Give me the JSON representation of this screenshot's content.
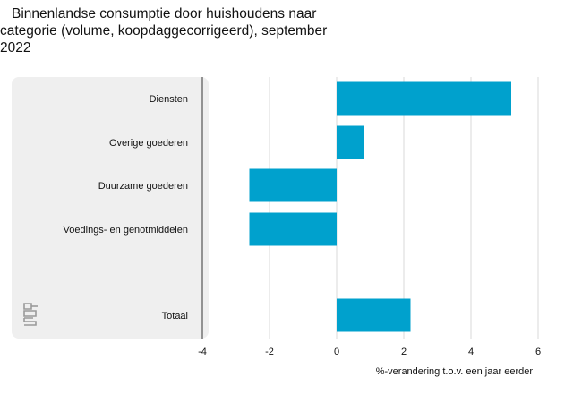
{
  "title_lines": [
    "Binnenlandse consumptie door huishoudens naar",
    "categorie (volume, koopdaggecorrigeerd), september",
    "2022"
  ],
  "logo_text": "cbs",
  "colors": {
    "bar": "#00a1cd",
    "label_panel": "#efefef",
    "grid": "#d9d9d9",
    "axis": "#555555"
  },
  "chart_data": {
    "type": "bar",
    "orientation": "horizontal",
    "title": "Binnenlandse consumptie door huishoudens naar categorie (volume, koopdaggecorrigeerd), september 2022",
    "categories": [
      "Diensten",
      "Overige goederen",
      "Duurzame goederen",
      "Voedings- en genotmiddelen",
      "Totaal"
    ],
    "values": [
      5.2,
      0.8,
      -2.6,
      -2.6,
      2.2
    ],
    "xlabel": "%-verandering t.o.v. een jaar eerder",
    "ylabel": "",
    "xlim": [
      -4,
      6
    ],
    "xticks": [
      -4,
      -2,
      0,
      2,
      4,
      6
    ],
    "xtick_labels": [
      "-4",
      "-2",
      "0",
      "2",
      "4",
      "6"
    ],
    "grid": true
  }
}
